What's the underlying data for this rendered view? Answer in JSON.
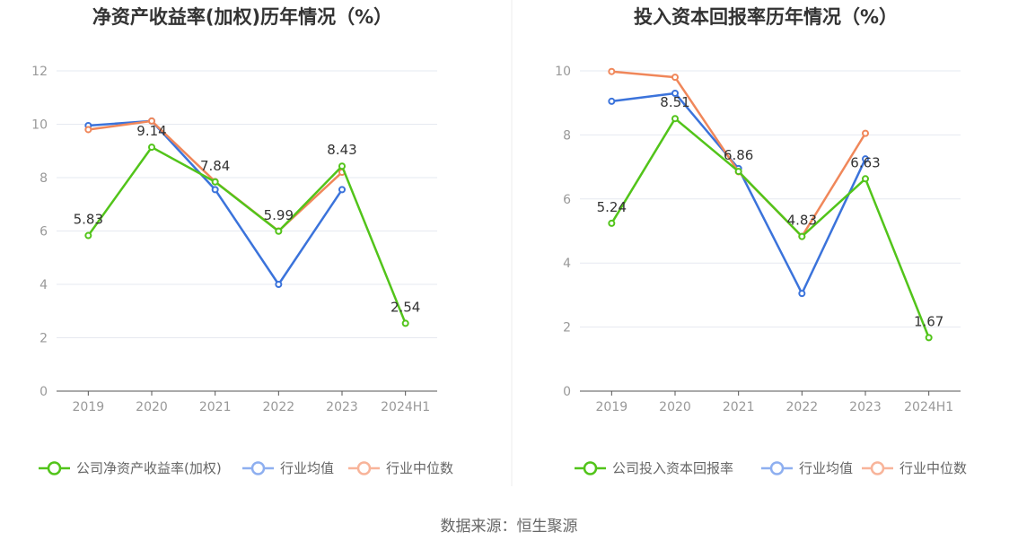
{
  "source_label": "数据来源：恒生聚源",
  "colors": {
    "company": "#52c41a",
    "industry_avg": "#3b73db",
    "industry_median": "#f0875a",
    "legend_avg": "#8eaff0",
    "legend_median": "#f8b49a",
    "grid": "#e6e9f0",
    "axis": "#555555"
  },
  "chart_data": [
    {
      "type": "line",
      "title": "净资产收益率(加权)历年情况（%）",
      "categories": [
        "2019",
        "2020",
        "2021",
        "2022",
        "2023",
        "2024H1"
      ],
      "ylim": [
        0,
        12
      ],
      "yticks": [
        0,
        2,
        4,
        6,
        8,
        10,
        12
      ],
      "series": [
        {
          "name": "公司净资产收益率(加权)",
          "role": "company",
          "values": [
            5.83,
            9.14,
            7.84,
            5.99,
            8.43,
            2.54
          ],
          "labels": [
            "5.83",
            "9.14",
            "7.84",
            "5.99",
            "8.43",
            "2.54"
          ]
        },
        {
          "name": "行业均值",
          "role": "industry_avg",
          "values": [
            9.95,
            10.12,
            7.55,
            4.0,
            7.55,
            null
          ]
        },
        {
          "name": "行业中位数",
          "role": "industry_median",
          "values": [
            9.8,
            10.12,
            7.85,
            6.0,
            8.2,
            null
          ]
        }
      ]
    },
    {
      "type": "line",
      "title": "投入资本回报率历年情况（%）",
      "categories": [
        "2019",
        "2020",
        "2021",
        "2022",
        "2023",
        "2024H1"
      ],
      "ylim": [
        0,
        10
      ],
      "yticks": [
        0,
        2,
        4,
        6,
        8,
        10
      ],
      "series": [
        {
          "name": "公司投入资本回报率",
          "role": "company",
          "values": [
            5.24,
            8.51,
            6.86,
            4.83,
            6.63,
            1.67
          ],
          "labels": [
            "5.24",
            "8.51",
            "6.86",
            "4.83",
            "6.63",
            "1.67"
          ]
        },
        {
          "name": "行业均值",
          "role": "industry_avg",
          "values": [
            9.05,
            9.3,
            6.95,
            3.05,
            7.25,
            null
          ]
        },
        {
          "name": "行业中位数",
          "role": "industry_median",
          "values": [
            9.98,
            9.8,
            6.85,
            4.83,
            8.05,
            null
          ]
        }
      ]
    }
  ]
}
